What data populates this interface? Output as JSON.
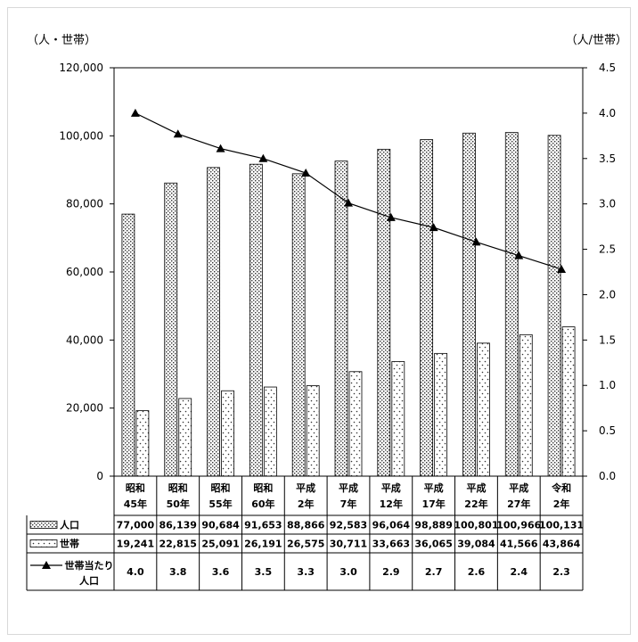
{
  "chart_data": {
    "type": "bar",
    "left_unit": "（人・世帯）",
    "right_unit": "（人/世帯）",
    "categories": [
      [
        "昭和",
        "45年"
      ],
      [
        "昭和",
        "50年"
      ],
      [
        "昭和",
        "55年"
      ],
      [
        "昭和",
        "60年"
      ],
      [
        "平成",
        "2年"
      ],
      [
        "平成",
        "7年"
      ],
      [
        "平成",
        "12年"
      ],
      [
        "平成",
        "17年"
      ],
      [
        "平成",
        "22年"
      ],
      [
        "平成",
        "27年"
      ],
      [
        "令和",
        "2年"
      ]
    ],
    "ylim": [
      0,
      120000
    ],
    "y_ticks": [
      "0",
      "20,000",
      "40,000",
      "60,000",
      "80,000",
      "100,000",
      "120,000"
    ],
    "y2lim": [
      0,
      4.5
    ],
    "y2_ticks": [
      "0.0",
      "0.5",
      "1.0",
      "1.5",
      "2.0",
      "2.5",
      "3.0",
      "3.5",
      "4.0",
      "4.5"
    ],
    "series": [
      {
        "name": "人口",
        "type": "bar",
        "axis": "left",
        "values": [
          77000,
          86139,
          90684,
          91653,
          88866,
          92583,
          96064,
          98889,
          100801,
          100966,
          100131
        ],
        "labels": [
          "77,000",
          "86,139",
          "90,684",
          "91,653",
          "88,866",
          "92,583",
          "96,064",
          "98,889",
          "100,801",
          "100,966",
          "100,131"
        ]
      },
      {
        "name": "世帯",
        "type": "bar",
        "axis": "left",
        "values": [
          19241,
          22815,
          25091,
          26191,
          26575,
          30711,
          33663,
          36065,
          39084,
          41566,
          43864
        ],
        "labels": [
          "19,241",
          "22,815",
          "25,091",
          "26,191",
          "26,575",
          "30,711",
          "33,663",
          "36,065",
          "39,084",
          "41,566",
          "43,864"
        ]
      },
      {
        "name": "世帯当たり人口",
        "name_lines": [
          "世帯当たり",
          "人口"
        ],
        "type": "line",
        "axis": "right",
        "values": [
          4.0,
          3.77,
          3.61,
          3.5,
          3.34,
          3.01,
          2.85,
          2.74,
          2.58,
          2.43,
          2.28
        ],
        "labels": [
          "4.0",
          "3.8",
          "3.6",
          "3.5",
          "3.3",
          "3.0",
          "2.9",
          "2.7",
          "2.6",
          "2.4",
          "2.3"
        ]
      }
    ],
    "grid": false,
    "legend": "data table below chart"
  }
}
